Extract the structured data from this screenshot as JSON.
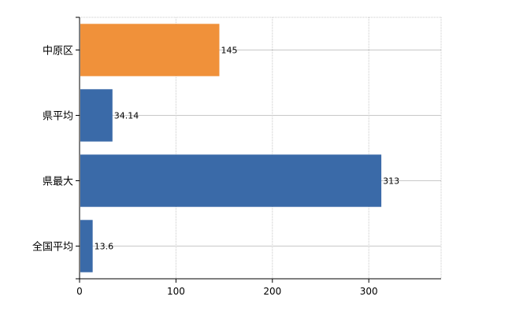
{
  "chart_data": {
    "type": "bar",
    "orientation": "horizontal",
    "categories": [
      "中原区",
      "県平均",
      "県最大",
      "全国平均"
    ],
    "values": [
      145,
      34.14,
      313,
      13.6
    ],
    "data_labels": [
      "145",
      "34.14",
      "313",
      "13.6"
    ],
    "bar_colors": [
      "#f0913a",
      "#3a6aa8",
      "#3a6aa8",
      "#3a6aa8"
    ],
    "xlim": [
      0,
      375
    ],
    "xticks": [
      0,
      100,
      200,
      300
    ],
    "xtick_labels": [
      "0",
      "100",
      "200",
      "300"
    ],
    "grid": true,
    "legend": "none",
    "title": "",
    "xlabel": "",
    "ylabel": ""
  }
}
